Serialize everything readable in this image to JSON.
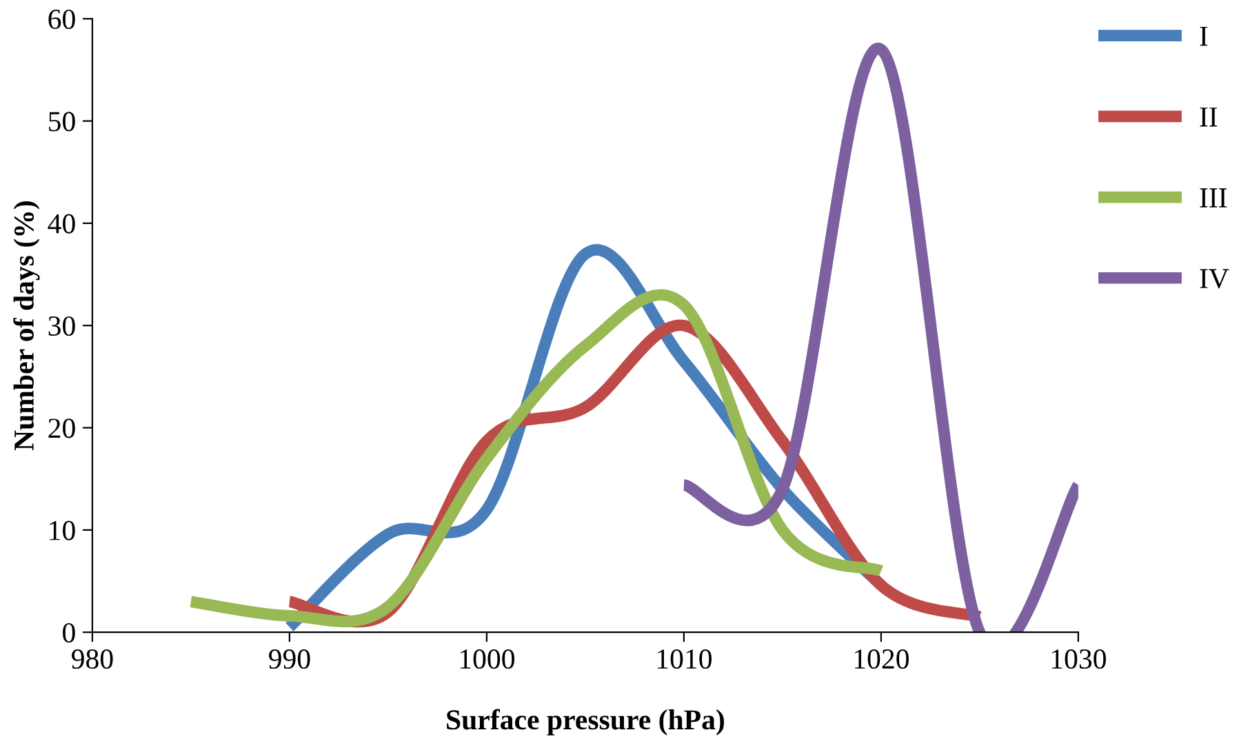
{
  "chart_data": {
    "type": "line",
    "xlabel": "Surface pressure (hPa)",
    "ylabel": "Number of days (%)",
    "xlim": [
      980,
      1030
    ],
    "xticks": [
      980,
      990,
      1000,
      1010,
      1020,
      1030
    ],
    "ylim": [
      0,
      60
    ],
    "yticks": [
      0,
      10,
      20,
      30,
      40,
      50,
      60
    ],
    "grid": false,
    "legend": "right",
    "marker": "none",
    "line_style": "solid",
    "series": [
      {
        "name": "I",
        "color": "#4a7ebb",
        "x": [
          990,
          995,
          1000,
          1005,
          1010,
          1015,
          1020
        ],
        "values": [
          0.5,
          9.6,
          12,
          37,
          26.5,
          14,
          4.6
        ]
      },
      {
        "name": "II",
        "color": "#be4b48",
        "x": [
          990,
          995,
          1000,
          1005,
          1010,
          1015,
          1020,
          1025
        ],
        "values": [
          3,
          2,
          18.7,
          22,
          30,
          18.7,
          4.6,
          1.5
        ]
      },
      {
        "name": "III",
        "color": "#98b954",
        "x": [
          985,
          990,
          995,
          1000,
          1005,
          1010,
          1015,
          1020
        ],
        "values": [
          3,
          1.6,
          2.5,
          17,
          28,
          32,
          10,
          6
        ]
      },
      {
        "name": "IV",
        "color": "#7d60a0",
        "x": [
          1010,
          1015,
          1020,
          1025,
          1030
        ],
        "values": [
          14.4,
          14,
          57,
          0,
          14.4
        ]
      }
    ]
  }
}
